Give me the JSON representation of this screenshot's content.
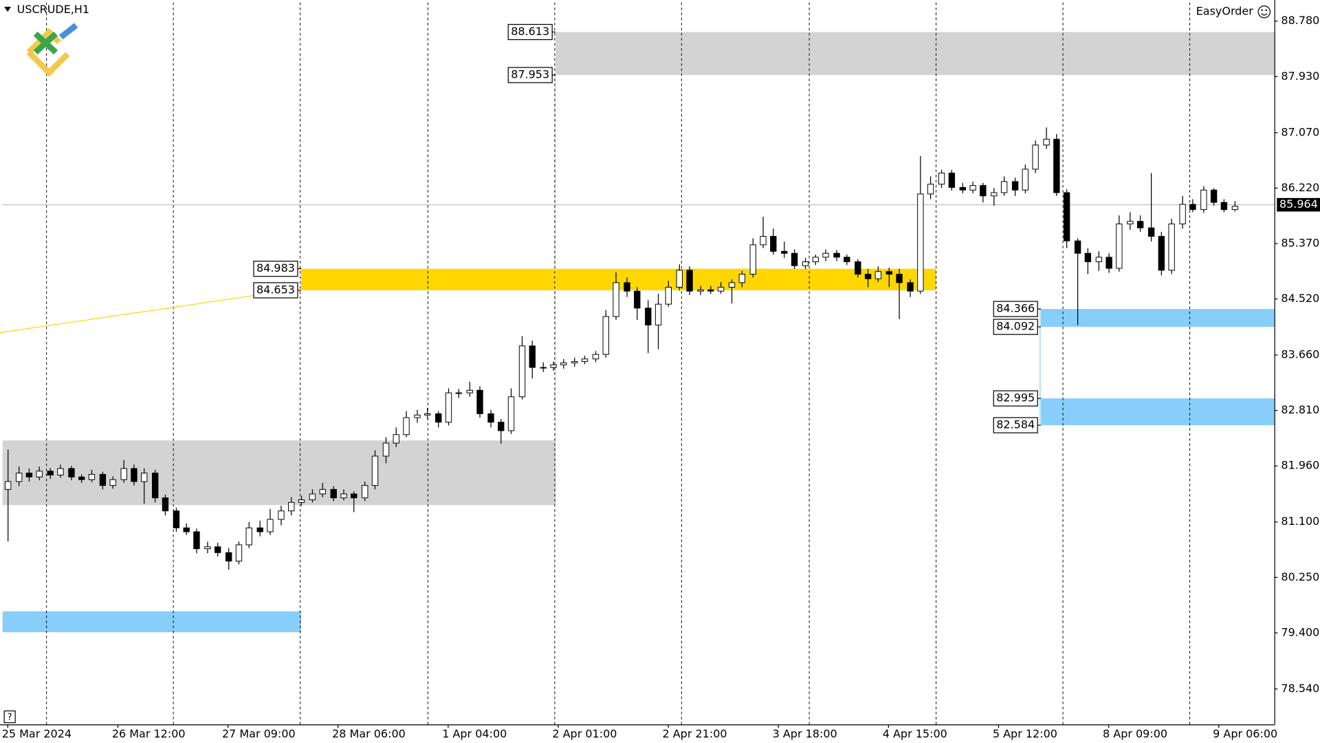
{
  "chart_data": {
    "type": "candlestick",
    "title": "USCRUDE,H1",
    "panel_label": "EasyOrder",
    "help_label": "?",
    "ylim": [
      77.996,
      89.065
    ],
    "yticks": [
      {
        "value": 88.78,
        "label": "88.780"
      },
      {
        "value": 87.93,
        "label": "87.930"
      },
      {
        "value": 87.07,
        "label": "87.070"
      },
      {
        "value": 86.22,
        "label": "86.220"
      },
      {
        "value": 85.37,
        "label": "85.370"
      },
      {
        "value": 84.52,
        "label": "84.520"
      },
      {
        "value": 83.66,
        "label": "83.660"
      },
      {
        "value": 82.81,
        "label": "82.810"
      },
      {
        "value": 81.96,
        "label": "81.960"
      },
      {
        "value": 81.1,
        "label": "81.100"
      },
      {
        "value": 80.25,
        "label": "80.250"
      },
      {
        "value": 79.4,
        "label": "79.400"
      },
      {
        "value": 78.54,
        "label": "78.540"
      }
    ],
    "xlim": [
      -0.5,
      120.8
    ],
    "xticks": [
      {
        "value": 0,
        "label": "25 Mar 2024"
      },
      {
        "value": 10.5,
        "label": "26 Mar 12:00"
      },
      {
        "value": 21,
        "label": "27 Mar 09:00"
      },
      {
        "value": 31.5,
        "label": "28 Mar 06:00"
      },
      {
        "value": 42,
        "label": "1 Apr 04:00"
      },
      {
        "value": 52.5,
        "label": "2 Apr 01:00"
      },
      {
        "value": 63,
        "label": "2 Apr 21:00"
      },
      {
        "value": 73.5,
        "label": "3 Apr 18:00"
      },
      {
        "value": 84,
        "label": "4 Apr 15:00"
      },
      {
        "value": 94.5,
        "label": "5 Apr 12:00"
      },
      {
        "value": 105,
        "label": "8 Apr 09:00"
      },
      {
        "value": 115.5,
        "label": "9 Apr 06:00"
      }
    ],
    "current_price": 85.964,
    "up_color": "#ffffff",
    "down_color": "#000000",
    "zones": [
      {
        "low": 87.953,
        "high": 88.613,
        "color": "#d3d3d3",
        "labeled": true
      },
      {
        "low": 84.653,
        "high": 84.983,
        "color": "#ffd700",
        "labeled": true
      },
      {
        "low": 84.092,
        "high": 84.366,
        "color": "#87cefa",
        "labeled": true
      },
      {
        "low": 82.584,
        "high": 82.995,
        "color": "#87cefa",
        "labeled": true
      },
      {
        "low": 81.36,
        "high": 82.35,
        "color": "#d3d3d3",
        "labeled": false
      },
      {
        "low": 79.41,
        "high": 79.73,
        "color": "#87cefa",
        "labeled": false
      }
    ],
    "ohlc": [
      [
        81.6,
        82.21,
        80.8,
        81.72
      ],
      [
        81.72,
        81.95,
        81.65,
        81.85
      ],
      [
        81.85,
        81.92,
        81.72,
        81.79
      ],
      [
        81.79,
        81.95,
        81.74,
        81.88
      ],
      [
        81.88,
        81.93,
        81.76,
        81.82
      ],
      [
        81.82,
        81.98,
        81.78,
        81.92
      ],
      [
        81.92,
        81.96,
        81.74,
        81.79
      ],
      [
        81.79,
        81.83,
        81.7,
        81.75
      ],
      [
        81.75,
        81.9,
        81.71,
        81.83
      ],
      [
        81.83,
        81.87,
        81.6,
        81.66
      ],
      [
        81.66,
        81.8,
        81.61,
        81.75
      ],
      [
        81.75,
        82.05,
        81.7,
        81.92
      ],
      [
        81.92,
        81.98,
        81.66,
        81.72
      ],
      [
        81.72,
        81.92,
        81.38,
        81.85
      ],
      [
        81.85,
        81.9,
        81.4,
        81.47
      ],
      [
        81.47,
        81.52,
        81.2,
        81.27
      ],
      [
        81.27,
        81.32,
        80.95,
        81.01
      ],
      [
        81.01,
        81.08,
        80.9,
        80.95
      ],
      [
        80.95,
        81.0,
        80.62,
        80.69
      ],
      [
        80.69,
        80.8,
        80.62,
        80.72
      ],
      [
        80.72,
        80.78,
        80.57,
        80.63
      ],
      [
        80.63,
        80.7,
        80.37,
        80.5
      ],
      [
        80.5,
        80.8,
        80.45,
        80.75
      ],
      [
        80.75,
        81.1,
        80.7,
        81.01
      ],
      [
        81.01,
        81.12,
        80.88,
        80.95
      ],
      [
        80.95,
        81.3,
        80.9,
        81.14
      ],
      [
        81.14,
        81.35,
        81.05,
        81.27
      ],
      [
        81.27,
        81.48,
        81.2,
        81.4
      ],
      [
        81.4,
        81.5,
        81.35,
        81.44
      ],
      [
        81.44,
        81.6,
        81.4,
        81.53
      ],
      [
        81.53,
        81.7,
        81.48,
        81.6
      ],
      [
        81.6,
        81.65,
        81.42,
        81.47
      ],
      [
        81.47,
        81.6,
        81.43,
        81.53
      ],
      [
        81.53,
        81.57,
        81.25,
        81.47
      ],
      [
        81.47,
        81.72,
        81.42,
        81.66
      ],
      [
        81.66,
        82.2,
        81.6,
        82.11
      ],
      [
        82.11,
        82.4,
        82.0,
        82.31
      ],
      [
        82.31,
        82.55,
        82.25,
        82.44
      ],
      [
        82.44,
        82.8,
        82.4,
        82.7
      ],
      [
        82.7,
        82.82,
        82.62,
        82.74
      ],
      [
        82.74,
        82.85,
        82.68,
        82.76
      ],
      [
        82.76,
        82.8,
        82.55,
        82.63
      ],
      [
        82.63,
        83.15,
        82.58,
        83.08
      ],
      [
        83.08,
        83.14,
        83.0,
        83.08
      ],
      [
        83.08,
        83.25,
        83.02,
        83.12
      ],
      [
        83.12,
        83.18,
        82.7,
        82.76
      ],
      [
        82.76,
        82.82,
        82.55,
        82.63
      ],
      [
        82.63,
        82.68,
        82.3,
        82.5
      ],
      [
        82.5,
        83.15,
        82.45,
        83.02
      ],
      [
        83.02,
        83.95,
        82.98,
        83.8
      ],
      [
        83.8,
        83.88,
        83.3,
        83.47
      ],
      [
        83.47,
        83.55,
        83.4,
        83.47
      ],
      [
        83.47,
        83.56,
        83.42,
        83.51
      ],
      [
        83.51,
        83.6,
        83.45,
        83.54
      ],
      [
        83.54,
        83.62,
        83.48,
        83.56
      ],
      [
        83.56,
        83.65,
        83.52,
        83.6
      ],
      [
        83.6,
        83.72,
        83.55,
        83.67
      ],
      [
        83.67,
        84.35,
        83.62,
        84.25
      ],
      [
        84.25,
        84.93,
        84.2,
        84.77
      ],
      [
        84.77,
        84.85,
        84.55,
        84.64
      ],
      [
        84.64,
        84.7,
        84.2,
        84.38
      ],
      [
        84.38,
        84.5,
        83.69,
        84.12
      ],
      [
        84.12,
        84.6,
        83.75,
        84.44
      ],
      [
        84.44,
        84.8,
        84.4,
        84.7
      ],
      [
        84.7,
        85.05,
        84.65,
        84.96
      ],
      [
        84.96,
        85.02,
        84.58,
        84.64
      ],
      [
        84.64,
        84.72,
        84.58,
        84.66
      ],
      [
        84.66,
        84.72,
        84.6,
        84.64
      ],
      [
        84.64,
        84.78,
        84.6,
        84.7
      ],
      [
        84.7,
        84.82,
        84.45,
        84.77
      ],
      [
        84.77,
        84.95,
        84.7,
        84.9
      ],
      [
        84.9,
        85.45,
        84.85,
        85.35
      ],
      [
        85.35,
        85.78,
        85.3,
        85.48
      ],
      [
        85.48,
        85.6,
        85.2,
        85.25
      ],
      [
        85.25,
        85.4,
        85.15,
        85.22
      ],
      [
        85.22,
        85.28,
        84.98,
        85.03
      ],
      [
        85.03,
        85.15,
        84.98,
        85.09
      ],
      [
        85.09,
        85.2,
        85.04,
        85.16
      ],
      [
        85.16,
        85.28,
        85.1,
        85.22
      ],
      [
        85.22,
        85.27,
        85.1,
        85.16
      ],
      [
        85.16,
        85.2,
        85.04,
        85.09
      ],
      [
        85.09,
        85.13,
        84.85,
        84.9
      ],
      [
        84.9,
        84.98,
        84.7,
        84.83
      ],
      [
        84.83,
        85.02,
        84.78,
        84.94
      ],
      [
        84.94,
        85.0,
        84.7,
        84.9
      ],
      [
        84.9,
        84.98,
        84.21,
        84.77
      ],
      [
        84.77,
        84.82,
        84.55,
        84.64
      ],
      [
        84.64,
        86.71,
        84.6,
        86.13
      ],
      [
        86.13,
        86.4,
        86.05,
        86.28
      ],
      [
        86.28,
        86.5,
        86.22,
        86.45
      ],
      [
        86.45,
        86.5,
        86.18,
        86.23
      ],
      [
        86.23,
        86.3,
        86.14,
        86.19
      ],
      [
        86.19,
        86.32,
        86.14,
        86.26
      ],
      [
        86.26,
        86.3,
        86.0,
        86.1
      ],
      [
        86.1,
        86.22,
        85.95,
        86.15
      ],
      [
        86.15,
        86.4,
        86.1,
        86.32
      ],
      [
        86.32,
        86.38,
        86.1,
        86.19
      ],
      [
        86.19,
        86.58,
        86.14,
        86.51
      ],
      [
        86.51,
        86.95,
        86.45,
        86.88
      ],
      [
        86.88,
        87.15,
        86.82,
        86.97
      ],
      [
        86.97,
        87.05,
        86.1,
        86.15
      ],
      [
        86.15,
        86.2,
        85.3,
        85.41
      ],
      [
        85.41,
        85.45,
        84.12,
        85.22
      ],
      [
        85.22,
        85.3,
        84.9,
        85.09
      ],
      [
        85.09,
        85.25,
        84.95,
        85.16
      ],
      [
        85.16,
        85.22,
        84.92,
        84.99
      ],
      [
        84.99,
        85.8,
        84.94,
        85.67
      ],
      [
        85.67,
        85.85,
        85.58,
        85.71
      ],
      [
        85.71,
        85.8,
        85.55,
        85.61
      ],
      [
        85.61,
        86.45,
        85.4,
        85.48
      ],
      [
        85.48,
        85.55,
        84.88,
        84.96
      ],
      [
        84.96,
        85.75,
        84.9,
        85.67
      ],
      [
        85.67,
        86.1,
        85.6,
        85.97
      ],
      [
        85.97,
        86.05,
        85.85,
        85.89
      ],
      [
        85.89,
        86.25,
        85.84,
        86.19
      ],
      [
        86.19,
        86.22,
        85.95,
        86.0
      ],
      [
        86.0,
        86.05,
        85.85,
        85.89
      ],
      [
        85.89,
        86.02,
        85.86,
        85.94
      ]
    ]
  }
}
